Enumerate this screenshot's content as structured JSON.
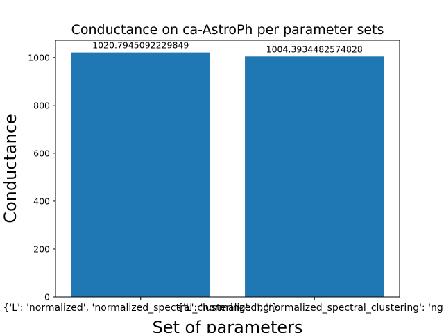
{
  "chart_data": {
    "type": "bar",
    "title": "Conductance on ca-AstroPh per parameter sets",
    "xlabel": "Set of parameters",
    "ylabel": "Conductance",
    "categories": [
      "{'L': 'normalized', 'normalized_spectral_clustering': 'ng'}",
      "{'L': 'normalized', 'normalized_spectral_clustering': 'ng'}"
    ],
    "values": [
      1020.7945092229849,
      1004.3934482574828
    ],
    "data_labels": [
      "1020.7945092229849",
      "1004.3934482574828"
    ],
    "yticks": [
      0,
      200,
      400,
      600,
      800,
      1000
    ],
    "ylim": [
      0,
      1071.83
    ],
    "grid": false,
    "colors": {
      "bar": "#1f77b4",
      "axis": "#000000",
      "background": "#ffffff"
    }
  }
}
